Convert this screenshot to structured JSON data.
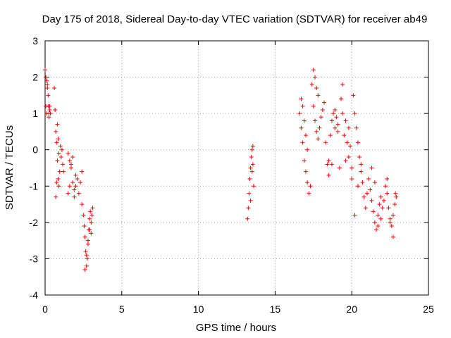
{
  "chart_data": {
    "type": "scatter",
    "title": "Day 175 of 2018, Sidereal Day-to-day VTEC variation (SDTVAR) for receiver ab49",
    "xlabel": "GPS time / hours",
    "ylabel": "SDTVAR / TECUs",
    "xlim": [
      0,
      25
    ],
    "ylim": [
      -4,
      3
    ],
    "xticks": [
      "0",
      "5",
      "10",
      "15",
      "20",
      "25"
    ],
    "yticks": [
      "-4",
      "-3",
      "-2",
      "-1",
      "0",
      "1",
      "2",
      "3"
    ],
    "grid": true,
    "marker": "+",
    "color": "#ff0000",
    "series": [
      {
        "name": "SDTVAR",
        "x": [
          0.0,
          0.05,
          0.1,
          0.15,
          0.2,
          0.25,
          0.3,
          0.05,
          0.1,
          0.15,
          0.2,
          0.25,
          0.3,
          0.35,
          0.6,
          0.65,
          0.7,
          0.75,
          0.8,
          0.85,
          0.9,
          0.95,
          1.0,
          1.05,
          1.1,
          1.15,
          1.2,
          0.7,
          0.75,
          0.8,
          0.85,
          0.9,
          1.5,
          1.6,
          1.7,
          1.8,
          1.9,
          2.0,
          2.1,
          2.2,
          2.3,
          2.4,
          1.5,
          1.6,
          1.7,
          1.8,
          1.9,
          2.0,
          2.4,
          2.5,
          2.55,
          2.6,
          2.65,
          2.7,
          2.75,
          2.8,
          2.85,
          2.9,
          2.95,
          3.0,
          3.05,
          3.1,
          2.6,
          2.7,
          2.8,
          2.9,
          3.0,
          13.2,
          13.25,
          13.3,
          13.35,
          13.4,
          13.45,
          13.5,
          13.55,
          13.6,
          13.4,
          13.5,
          13.55,
          16.6,
          16.7,
          16.8,
          16.9,
          17.0,
          17.1,
          17.2,
          17.3,
          16.7,
          16.8,
          16.9,
          17.0,
          17.1,
          17.4,
          17.5,
          17.6,
          17.7,
          17.8,
          17.5,
          17.6,
          17.7,
          17.8,
          17.9,
          18.0,
          18.1,
          18.2,
          18.3,
          18.4,
          18.5,
          18.6,
          18.7,
          18.8,
          18.9,
          19.0,
          19.1,
          19.2,
          18.5,
          18.7,
          18.9,
          19.1,
          19.3,
          19.4,
          19.5,
          19.6,
          19.7,
          19.8,
          19.9,
          20.0,
          19.4,
          19.6,
          19.8,
          20.0,
          20.1,
          20.2,
          20.3,
          20.4,
          20.5,
          20.6,
          20.7,
          20.8,
          20.9,
          21.0,
          20.2,
          20.4,
          20.6,
          21.1,
          21.2,
          21.3,
          21.4,
          21.5,
          21.6,
          21.7,
          21.8,
          21.9,
          22.0,
          21.3,
          21.5,
          21.7,
          21.9,
          22.1,
          22.2,
          22.3,
          22.4,
          22.5,
          22.6,
          22.7,
          22.8,
          22.9,
          22.3,
          22.5,
          22.7,
          22.85
        ],
        "y": [
          2.2,
          2.0,
          1.9,
          1.7,
          1.2,
          1.0,
          1.1,
          1.2,
          1.0,
          1.8,
          1.5,
          0.9,
          1.2,
          1.0,
          1.7,
          1.1,
          0.5,
          0.2,
          -0.3,
          -0.8,
          -1.0,
          -0.6,
          0.1,
          -0.2,
          0.0,
          -0.4,
          -0.6,
          -1.3,
          -0.9,
          0.7,
          0.3,
          -0.1,
          -0.1,
          -0.3,
          -0.5,
          -0.9,
          -1.1,
          -0.7,
          -0.8,
          -1.2,
          -0.9,
          -0.6,
          -1.2,
          -1.0,
          -0.4,
          -0.2,
          -1.3,
          -1.0,
          -1.5,
          -1.8,
          -2.1,
          -2.4,
          -2.8,
          -3.2,
          -3.0,
          -2.6,
          -2.2,
          -1.9,
          -1.7,
          -2.0,
          -1.8,
          -1.6,
          -3.3,
          -2.9,
          -2.5,
          -2.2,
          -2.3,
          -1.9,
          -1.6,
          -1.2,
          -0.8,
          -0.5,
          -0.2,
          0.0,
          -0.4,
          -1.0,
          -1.4,
          -0.6,
          0.1,
          1.0,
          0.6,
          0.2,
          -0.3,
          -0.6,
          -0.9,
          -1.2,
          -1.0,
          1.4,
          1.2,
          0.8,
          0.4,
          0.0,
          1.8,
          2.2,
          2.0,
          1.7,
          1.5,
          1.2,
          0.8,
          0.5,
          0.3,
          0.6,
          0.9,
          1.1,
          1.3,
          0.2,
          -0.4,
          -0.3,
          0.4,
          0.8,
          1.0,
          0.6,
          0.9,
          0.5,
          -0.5,
          -0.7,
          -0.4,
          1.1,
          0.7,
          1.4,
          1.0,
          0.4,
          0.8,
          0.2,
          -0.2,
          0.1,
          -0.5,
          1.8,
          -0.3,
          0.6,
          -0.8,
          1.5,
          1.0,
          0.6,
          0.2,
          -0.2,
          -0.6,
          -0.9,
          -1.3,
          -1.6,
          -1.2,
          -1.8,
          -1.0,
          -0.4,
          -0.8,
          -1.1,
          -1.4,
          -1.7,
          -2.0,
          -2.2,
          -1.8,
          -1.5,
          -1.3,
          -1.6,
          -0.5,
          -0.9,
          -2.1,
          -1.9,
          -1.4,
          -1.0,
          -1.2,
          -1.6,
          -1.9,
          -2.1,
          -1.8,
          -1.5,
          -1.3,
          -0.8,
          -2.0,
          -2.4,
          -1.2
        ]
      }
    ]
  }
}
